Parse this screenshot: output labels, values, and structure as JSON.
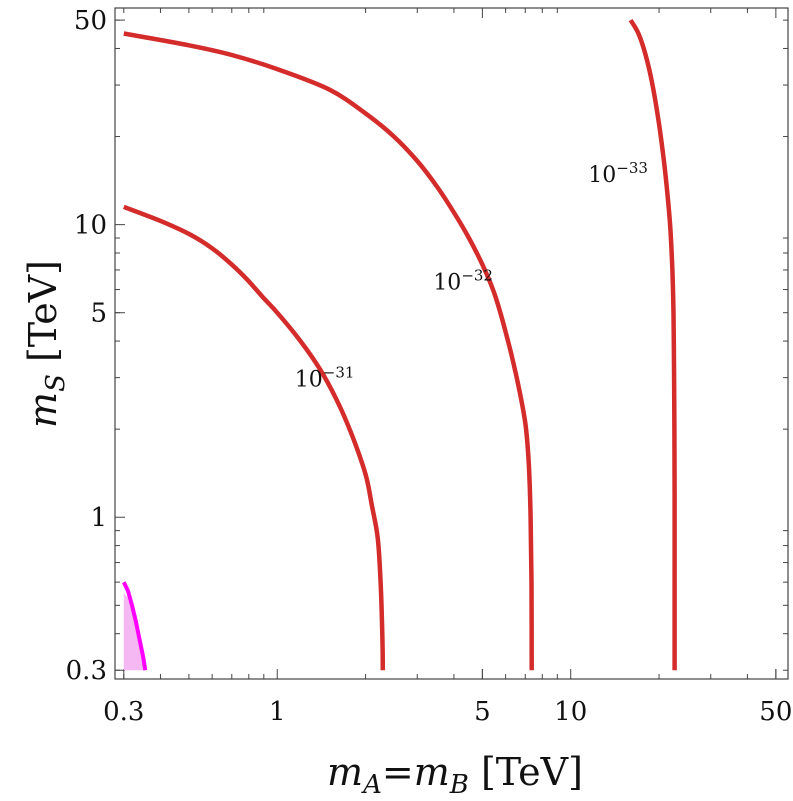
{
  "chart_data": {
    "type": "line",
    "xscale": "log",
    "yscale": "log",
    "xlim": [
      0.28,
      55
    ],
    "ylim": [
      0.28,
      55
    ],
    "xlabel_parts": {
      "m1": "m",
      "s1": "A",
      "eq": "=",
      "m2": "m",
      "s2": "B",
      "unit": " [TeV]"
    },
    "ylabel_parts": {
      "m": "m",
      "s": "S",
      "unit": " [TeV]"
    },
    "xticks": [
      0.3,
      1,
      5,
      10,
      50
    ],
    "yticks": [
      0.3,
      1,
      5,
      10,
      50
    ],
    "xtick_labels": [
      "0.3",
      "1",
      "5",
      "10",
      "50"
    ],
    "ytick_labels": [
      "0.3",
      "1",
      "5",
      "10",
      "50"
    ],
    "contour_color": "#d42b2b",
    "excluded_color": "#ff00ff",
    "excluded_fill": "#f6b8f2",
    "series": [
      {
        "label_base": "10",
        "label_exp": "−31",
        "label_at": [
          1.45,
          2.8
        ],
        "points": [
          [
            0.3,
            11.5
          ],
          [
            0.4,
            10.3
          ],
          [
            0.5,
            9.3
          ],
          [
            0.6,
            8.3
          ],
          [
            0.7,
            7.3
          ],
          [
            0.8,
            6.4
          ],
          [
            0.9,
            5.6
          ],
          [
            1.0,
            5.0
          ],
          [
            1.2,
            4.0
          ],
          [
            1.4,
            3.2
          ],
          [
            1.6,
            2.5
          ],
          [
            1.8,
            1.9
          ],
          [
            2.0,
            1.4
          ],
          [
            2.1,
            1.1
          ],
          [
            2.2,
            0.85
          ],
          [
            2.25,
            0.6
          ],
          [
            2.28,
            0.4
          ],
          [
            2.29,
            0.3
          ]
        ]
      },
      {
        "label_base": "10",
        "label_exp": "−32",
        "label_at": [
          4.3,
          6.0
        ],
        "points": [
          [
            0.3,
            45
          ],
          [
            0.5,
            41
          ],
          [
            0.7,
            38
          ],
          [
            1.0,
            34
          ],
          [
            1.5,
            29
          ],
          [
            2.0,
            24
          ],
          [
            2.5,
            20
          ],
          [
            3.0,
            16.5
          ],
          [
            3.5,
            13.5
          ],
          [
            4.0,
            11.0
          ],
          [
            4.5,
            9.0
          ],
          [
            5.0,
            7.3
          ],
          [
            5.5,
            5.8
          ],
          [
            6.0,
            4.3
          ],
          [
            6.5,
            3.1
          ],
          [
            7.0,
            2.1
          ],
          [
            7.2,
            1.5
          ],
          [
            7.3,
            1.0
          ],
          [
            7.35,
            0.6
          ],
          [
            7.36,
            0.3
          ]
        ]
      },
      {
        "label_base": "10",
        "label_exp": "−33",
        "label_at": [
          14.5,
          14.0
        ],
        "points": [
          [
            16,
            50
          ],
          [
            17,
            45
          ],
          [
            18,
            38
          ],
          [
            19,
            30
          ],
          [
            20,
            22
          ],
          [
            21,
            15
          ],
          [
            21.8,
            10
          ],
          [
            22.2,
            7
          ],
          [
            22.4,
            5
          ],
          [
            22.5,
            3
          ],
          [
            22.55,
            2
          ],
          [
            22.6,
            1.2
          ],
          [
            22.6,
            0.6
          ],
          [
            22.6,
            0.3
          ]
        ]
      }
    ],
    "excluded_region": {
      "boundary": [
        [
          0.3,
          0.6
        ],
        [
          0.31,
          0.56
        ],
        [
          0.32,
          0.5
        ],
        [
          0.33,
          0.44
        ],
        [
          0.34,
          0.38
        ],
        [
          0.35,
          0.33
        ],
        [
          0.355,
          0.3
        ]
      ],
      "fill_polygon": [
        [
          0.3,
          0.55
        ],
        [
          0.31,
          0.53
        ],
        [
          0.32,
          0.48
        ],
        [
          0.33,
          0.43
        ],
        [
          0.34,
          0.38
        ],
        [
          0.35,
          0.33
        ],
        [
          0.355,
          0.3
        ],
        [
          0.3,
          0.3
        ]
      ]
    }
  }
}
